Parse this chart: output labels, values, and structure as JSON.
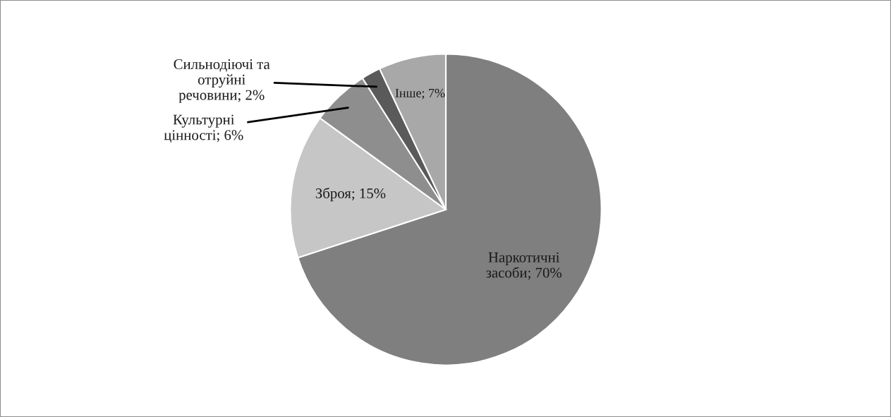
{
  "chart_data": {
    "type": "pie",
    "categories": [
      "Наркотичні засоби",
      "Зброя",
      "Культурні цінності",
      "Сильнодіючі та отруйні речовини",
      "Інше"
    ],
    "values": [
      70,
      15,
      6,
      2,
      7
    ],
    "value_labels": [
      "70%",
      "15%",
      "6%",
      "2%",
      "7%"
    ],
    "colors": [
      "#7f7f7f",
      "#c6c6c6",
      "#8e8e8e",
      "#5a5a5a",
      "#a8a8a8"
    ]
  }
}
